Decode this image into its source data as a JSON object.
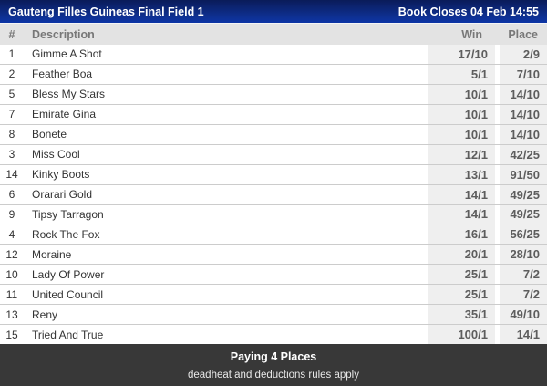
{
  "header": {
    "title": "Gauteng Filles Guineas Final Field 1",
    "book_closes": "Book Closes 04 Feb 14:55"
  },
  "table": {
    "columns": {
      "number": "#",
      "description": "Description",
      "win": "Win",
      "place": "Place"
    },
    "rows": [
      {
        "num": "1",
        "desc": "Gimme A Shot",
        "win": "17/10",
        "place": "2/9"
      },
      {
        "num": "2",
        "desc": "Feather Boa",
        "win": "5/1",
        "place": "7/10"
      },
      {
        "num": "5",
        "desc": "Bless My Stars",
        "win": "10/1",
        "place": "14/10"
      },
      {
        "num": "7",
        "desc": "Emirate Gina",
        "win": "10/1",
        "place": "14/10"
      },
      {
        "num": "8",
        "desc": "Bonete",
        "win": "10/1",
        "place": "14/10"
      },
      {
        "num": "3",
        "desc": "Miss Cool",
        "win": "12/1",
        "place": "42/25"
      },
      {
        "num": "14",
        "desc": "Kinky Boots",
        "win": "13/1",
        "place": "91/50"
      },
      {
        "num": "6",
        "desc": "Orarari Gold",
        "win": "14/1",
        "place": "49/25"
      },
      {
        "num": "9",
        "desc": "Tipsy Tarragon",
        "win": "14/1",
        "place": "49/25"
      },
      {
        "num": "4",
        "desc": "Rock The Fox",
        "win": "16/1",
        "place": "56/25"
      },
      {
        "num": "12",
        "desc": "Moraine",
        "win": "20/1",
        "place": "28/10"
      },
      {
        "num": "10",
        "desc": "Lady Of Power",
        "win": "25/1",
        "place": "7/2"
      },
      {
        "num": "11",
        "desc": "United Council",
        "win": "25/1",
        "place": "7/2"
      },
      {
        "num": "13",
        "desc": "Reny",
        "win": "35/1",
        "place": "49/10"
      },
      {
        "num": "15",
        "desc": "Tried And True",
        "win": "100/1",
        "place": "14/1"
      }
    ]
  },
  "footer": {
    "paying": "Paying 4 Places",
    "rules": "deadheat and deductions rules apply"
  },
  "colors": {
    "topbar_blue_top": "#0a1b59",
    "topbar_blue_bottom": "#0d35a6",
    "header_gray": "#e3e3e3",
    "odds_cell_gray": "#efefef",
    "row_separator": "#cccccc",
    "footer_dark": "#383838",
    "odds_text": "#5d5d5d",
    "body_text": "#333333"
  }
}
